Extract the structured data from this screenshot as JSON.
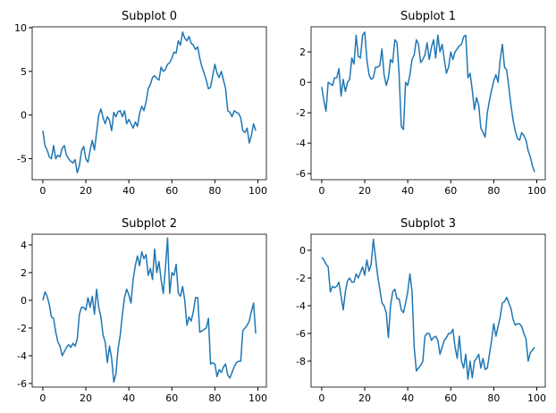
{
  "chart_data": [
    {
      "type": "line",
      "title": "Subplot 0",
      "xlim": [
        -4.95,
        103.95
      ],
      "xticks": [
        0,
        20,
        40,
        60,
        80,
        100
      ],
      "ylim": [
        -7.4,
        10.1
      ],
      "yticks": [
        -5,
        0,
        5,
        10
      ],
      "series": [
        {
          "color": "#1f77b4",
          "x": [
            0,
            1,
            2,
            3,
            4,
            5,
            6,
            7,
            8,
            9,
            10,
            11,
            12,
            13,
            14,
            15,
            16,
            17,
            18,
            19,
            20,
            21,
            22,
            23,
            24,
            25,
            26,
            27,
            28,
            29,
            30,
            31,
            32,
            33,
            34,
            35,
            36,
            37,
            38,
            39,
            40,
            41,
            42,
            43,
            44,
            45,
            46,
            47,
            48,
            49,
            50,
            51,
            52,
            53,
            54,
            55,
            56,
            57,
            58,
            59,
            60,
            61,
            62,
            63,
            64,
            65,
            66,
            67,
            68,
            69,
            70,
            71,
            72,
            73,
            74,
            75,
            76,
            77,
            78,
            79,
            80,
            81,
            82,
            83,
            84,
            85,
            86,
            87,
            88,
            89,
            90,
            91,
            92,
            93,
            94,
            95,
            96,
            97,
            98,
            99
          ],
          "values": [
            -1.8,
            -3.5,
            -4,
            -4.8,
            -5,
            -3.5,
            -5,
            -4.6,
            -4.8,
            -3.8,
            -3.5,
            -4.6,
            -5,
            -5.3,
            -5.5,
            -5.1,
            -6.6,
            -5.8,
            -4.1,
            -3.6,
            -5,
            -5.4,
            -4,
            -2.9,
            -4,
            -2,
            0,
            0.7,
            -0.3,
            -1,
            -0.2,
            -0.6,
            -1.8,
            0.3,
            -0.2,
            0.4,
            0.5,
            -0.2,
            0.5,
            -1,
            -0.5,
            -1,
            -1.5,
            -0.8,
            -1.3,
            0.2,
            1,
            0.5,
            1.5,
            3,
            3.5,
            4.3,
            4.5,
            4.2,
            4,
            5.5,
            5,
            5.2,
            5.8,
            6,
            6.5,
            7.2,
            7.1,
            8.5,
            8,
            9.5,
            8.8,
            8.5,
            9,
            8.2,
            8,
            7.5,
            7.8,
            6.5,
            5.5,
            4.8,
            4,
            3,
            3.2,
            4.5,
            5.8,
            4.8,
            4.3,
            5,
            4,
            3,
            0.5,
            0.3,
            -0.2,
            0.5,
            0.3,
            0.2,
            -0.3,
            -1.8,
            -2,
            -1.5,
            -3.2,
            -2.3,
            -1,
            -1.8
          ]
        }
      ]
    },
    {
      "type": "line",
      "title": "Subplot 1",
      "xlim": [
        -4.95,
        103.95
      ],
      "xticks": [
        0,
        20,
        40,
        60,
        80,
        100
      ],
      "ylim": [
        -6.4,
        3.65
      ],
      "yticks": [
        -6,
        -4,
        -2,
        0,
        2
      ],
      "series": [
        {
          "color": "#1f77b4",
          "x": [
            0,
            1,
            2,
            3,
            4,
            5,
            6,
            7,
            8,
            9,
            10,
            11,
            12,
            13,
            14,
            15,
            16,
            17,
            18,
            19,
            20,
            21,
            22,
            23,
            24,
            25,
            26,
            27,
            28,
            29,
            30,
            31,
            32,
            33,
            34,
            35,
            36,
            37,
            38,
            39,
            40,
            41,
            42,
            43,
            44,
            45,
            46,
            47,
            48,
            49,
            50,
            51,
            52,
            53,
            54,
            55,
            56,
            57,
            58,
            59,
            60,
            61,
            62,
            63,
            64,
            65,
            66,
            67,
            68,
            69,
            70,
            71,
            72,
            73,
            74,
            75,
            76,
            77,
            78,
            79,
            80,
            81,
            82,
            83,
            84,
            85,
            86,
            87,
            88,
            89,
            90,
            91,
            92,
            93,
            94,
            95,
            96,
            97,
            98,
            99
          ],
          "values": [
            -0.3,
            -1.2,
            -1.9,
            0,
            -0.1,
            -0.2,
            0.3,
            0.3,
            0.9,
            -0.9,
            0.2,
            -0.6,
            0,
            0.2,
            1.6,
            1.2,
            3.1,
            1.7,
            1.6,
            3.1,
            3.3,
            1.5,
            0.5,
            0.2,
            0.3,
            1,
            1,
            1.1,
            2.2,
            0.5,
            -0.2,
            0.3,
            1.5,
            1.3,
            2.8,
            2.6,
            0.5,
            -2.9,
            -3.1,
            0,
            -0.2,
            0.5,
            1.5,
            1.8,
            2.8,
            2.5,
            1.3,
            1.5,
            1.8,
            2.6,
            1.5,
            2.3,
            2.8,
            1.6,
            3.1,
            2,
            2.5,
            1.5,
            0.6,
            1,
            2,
            1.5,
            2,
            2.2,
            2.4,
            2.5,
            3,
            3.1,
            0.3,
            0.6,
            -0.5,
            -1.8,
            -1,
            -1.5,
            -3,
            -3.3,
            -3.6,
            -2,
            -1.2,
            -0.5,
            0.1,
            0.5,
            0,
            1.5,
            2.5,
            1,
            0.8,
            -0.3,
            -1.5,
            -2.5,
            -3.2,
            -3.7,
            -3.8,
            -3.3,
            -3.5,
            -3.8,
            -4.5,
            -4.9,
            -5.5,
            -5.9
          ]
        }
      ]
    },
    {
      "type": "line",
      "title": "Subplot 2",
      "xlim": [
        -4.95,
        103.95
      ],
      "xticks": [
        0,
        20,
        40,
        60,
        80,
        100
      ],
      "ylim": [
        -6.26,
        4.77
      ],
      "yticks": [
        -6,
        -4,
        -2,
        0,
        2,
        4
      ],
      "series": [
        {
          "color": "#1f77b4",
          "x": [
            0,
            1,
            2,
            3,
            4,
            5,
            6,
            7,
            8,
            9,
            10,
            11,
            12,
            13,
            14,
            15,
            16,
            17,
            18,
            19,
            20,
            21,
            22,
            23,
            24,
            25,
            26,
            27,
            28,
            29,
            30,
            31,
            32,
            33,
            34,
            35,
            36,
            37,
            38,
            39,
            40,
            41,
            42,
            43,
            44,
            45,
            46,
            47,
            48,
            49,
            50,
            51,
            52,
            53,
            54,
            55,
            56,
            57,
            58,
            59,
            60,
            61,
            62,
            63,
            64,
            65,
            66,
            67,
            68,
            69,
            70,
            71,
            72,
            73,
            74,
            75,
            76,
            77,
            78,
            79,
            80,
            81,
            82,
            83,
            84,
            85,
            86,
            87,
            88,
            89,
            90,
            91,
            92,
            93,
            94,
            95,
            96,
            97,
            98,
            99
          ],
          "values": [
            0,
            0.6,
            0.3,
            -0.3,
            -1.2,
            -1.3,
            -2.3,
            -3,
            -3.3,
            -4,
            -3.7,
            -3.4,
            -3.2,
            -3.4,
            -3.1,
            -3.3,
            -2.8,
            -1,
            -0.5,
            -0.5,
            -0.7,
            0.2,
            -0.5,
            0.3,
            -1,
            0.8,
            -0.5,
            -1.2,
            -2.5,
            -3,
            -4.5,
            -3.3,
            -4.2,
            -5.9,
            -5.3,
            -3.5,
            -2.5,
            -1,
            0.2,
            0.8,
            0.4,
            -0.2,
            1.5,
            2.5,
            3.2,
            2.5,
            3.5,
            3,
            3.3,
            1.8,
            2.3,
            1.5,
            3.7,
            2,
            2.8,
            1.5,
            0.5,
            2.3,
            4.5,
            0.5,
            2,
            1.8,
            2.6,
            0.5,
            0.3,
            1,
            0,
            -1.8,
            -1.2,
            -1.5,
            -0.8,
            0.2,
            0.2,
            -2.3,
            -2.2,
            -2.1,
            -2,
            -1.3,
            -4.6,
            -4.5,
            -4.6,
            -5.5,
            -5,
            -5.2,
            -4.8,
            -4.6,
            -5.4,
            -5.6,
            -5.2,
            -4.8,
            -4.5,
            -4.4,
            -4.4,
            -2.2,
            -2,
            -1.8,
            -1.5,
            -0.8,
            -0.2,
            -2.4
          ]
        }
      ]
    },
    {
      "type": "line",
      "title": "Subplot 3",
      "xlim": [
        -4.95,
        103.95
      ],
      "xticks": [
        0,
        20,
        40,
        60,
        80,
        100
      ],
      "ylim": [
        -9.87,
        1.16
      ],
      "yticks": [
        -8,
        -6,
        -4,
        -2,
        0
      ],
      "series": [
        {
          "color": "#1f77b4",
          "x": [
            0,
            1,
            2,
            3,
            4,
            5,
            6,
            7,
            8,
            9,
            10,
            11,
            12,
            13,
            14,
            15,
            16,
            17,
            18,
            19,
            20,
            21,
            22,
            23,
            24,
            25,
            26,
            27,
            28,
            29,
            30,
            31,
            32,
            33,
            34,
            35,
            36,
            37,
            38,
            39,
            40,
            41,
            42,
            43,
            44,
            45,
            46,
            47,
            48,
            49,
            50,
            51,
            52,
            53,
            54,
            55,
            56,
            57,
            58,
            59,
            60,
            61,
            62,
            63,
            64,
            65,
            66,
            67,
            68,
            69,
            70,
            71,
            72,
            73,
            74,
            75,
            76,
            77,
            78,
            79,
            80,
            81,
            82,
            83,
            84,
            85,
            86,
            87,
            88,
            89,
            90,
            91,
            92,
            93,
            94,
            95,
            96,
            97,
            98,
            99
          ],
          "values": [
            -0.5,
            -0.7,
            -1,
            -1.2,
            -3,
            -2.6,
            -2.7,
            -2.6,
            -2.3,
            -3.3,
            -4.3,
            -3,
            -2.2,
            -2,
            -2.3,
            -2.3,
            -1.7,
            -2,
            -1.6,
            -1.2,
            -1.8,
            -0.7,
            -1.5,
            -1,
            0.8,
            -0.5,
            -1.8,
            -2.8,
            -3.8,
            -4,
            -4.5,
            -6.3,
            -4,
            -3,
            -2.8,
            -3.5,
            -3.5,
            -4.3,
            -4.5,
            -3.8,
            -3,
            -1.7,
            -3,
            -7,
            -8.7,
            -8.5,
            -8.3,
            -8,
            -6.2,
            -6,
            -6,
            -6.5,
            -6.3,
            -6.2,
            -6.5,
            -7.5,
            -7,
            -6.5,
            -6.3,
            -6,
            -6,
            -5.7,
            -7,
            -7.8,
            -6.2,
            -8,
            -8.5,
            -7.5,
            -9.3,
            -8,
            -9.2,
            -8,
            -7.8,
            -7.5,
            -8.5,
            -7.8,
            -8.6,
            -8.5,
            -7.5,
            -6.5,
            -5.3,
            -6.2,
            -5.5,
            -4.8,
            -3.8,
            -3.7,
            -3.4,
            -3.8,
            -4.2,
            -5,
            -5.4,
            -5.3,
            -5.3,
            -5.5,
            -6,
            -6.4,
            -8,
            -7.4,
            -7.2,
            -7
          ]
        }
      ]
    }
  ]
}
